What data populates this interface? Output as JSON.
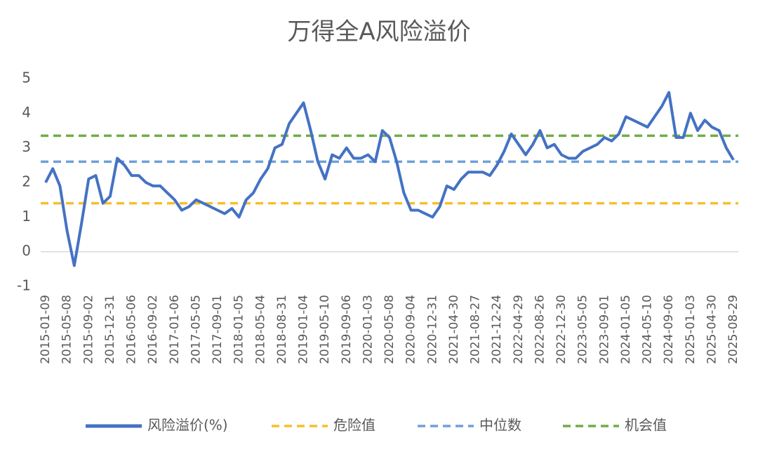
{
  "chart_data": {
    "type": "line",
    "title": "万得全A风险溢价",
    "categories": [
      "2015-01-09",
      null,
      null,
      "2015-05-08",
      null,
      null,
      "2015-09-02",
      null,
      null,
      "2015-12-31",
      null,
      null,
      "2016-05-06",
      null,
      null,
      "2016-09-02",
      null,
      null,
      "2017-01-06",
      null,
      null,
      "2017-05-05",
      null,
      null,
      "2017-09-01",
      null,
      null,
      "2018-01-05",
      null,
      null,
      "2018-05-04",
      null,
      null,
      "2018-08-31",
      null,
      null,
      "2019-01-04",
      null,
      null,
      "2019-05-10",
      null,
      null,
      "2019-09-06",
      null,
      null,
      "2020-01-03",
      null,
      null,
      "2020-05-08",
      null,
      null,
      "2020-09-04",
      null,
      null,
      "2020-12-31",
      null,
      null,
      "2021-04-30",
      null,
      null,
      "2021-08-27",
      null,
      null,
      "2021-12-24",
      null,
      null,
      "2022-04-29",
      null,
      null,
      "2022-08-26",
      null,
      null,
      "2022-12-30",
      null,
      null,
      "2023-05-05",
      null,
      null,
      "2023-09-01",
      null,
      null,
      "2024-01-05",
      null,
      null,
      "2024-05-10",
      null,
      null,
      "2024-09-06",
      null,
      null,
      "2025-01-03",
      null,
      null,
      "2025-04-30",
      null,
      null,
      "2025-08-29"
    ],
    "series": [
      {
        "name": "风险溢价(%)",
        "color": "#4472c4",
        "values": [
          2.0,
          2.4,
          1.9,
          0.6,
          -0.4,
          0.8,
          2.1,
          2.2,
          1.4,
          1.6,
          2.7,
          2.5,
          2.2,
          2.2,
          2.0,
          1.9,
          1.9,
          1.7,
          1.5,
          1.2,
          1.3,
          1.5,
          1.4,
          1.3,
          1.2,
          1.1,
          1.25,
          1.0,
          1.5,
          1.7,
          2.1,
          2.4,
          3.0,
          3.1,
          3.7,
          4.0,
          4.3,
          3.5,
          2.6,
          2.1,
          2.8,
          2.7,
          3.0,
          2.7,
          2.7,
          2.8,
          2.6,
          3.5,
          3.3,
          2.6,
          1.7,
          1.2,
          1.2,
          1.1,
          1.0,
          1.3,
          1.9,
          1.8,
          2.1,
          2.3,
          2.3,
          2.3,
          2.2,
          2.5,
          2.9,
          3.4,
          3.1,
          2.8,
          3.1,
          3.5,
          3.0,
          3.1,
          2.8,
          2.7,
          2.7,
          2.9,
          3.0,
          3.1,
          3.3,
          3.2,
          3.4,
          3.9,
          3.8,
          3.7,
          3.6,
          3.9,
          4.2,
          4.6,
          3.3,
          3.3,
          4.0,
          3.5,
          3.8,
          3.6,
          3.5,
          3.0,
          2.65
        ]
      }
    ],
    "reference_lines": [
      {
        "name": "危险值",
        "value": 1.4,
        "color": "#f5c02b"
      },
      {
        "name": "中位数",
        "value": 2.6,
        "color": "#6fa0d8"
      },
      {
        "name": "机会值",
        "value": 3.35,
        "color": "#70ad47"
      }
    ],
    "ylim": [
      -1,
      5
    ],
    "yticks": [
      -1,
      0,
      1,
      2,
      3,
      4,
      5
    ]
  }
}
